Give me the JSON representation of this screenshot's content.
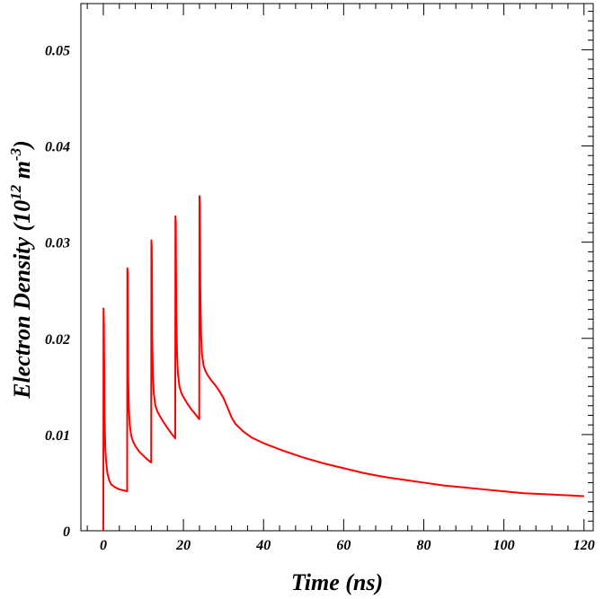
{
  "chart_data": {
    "type": "line",
    "xlabel": "Time (ns)",
    "ylabel": {
      "prefix": "Electron Density (10",
      "exp1": "12",
      "unit": " m",
      "exp2": "-3",
      "suffix": ")"
    },
    "xlim": [
      -5.6,
      122.3
    ],
    "ylim": [
      0,
      0.0548
    ],
    "xticks": [
      0,
      20,
      40,
      60,
      80,
      100,
      120
    ],
    "xtick_labels": [
      "0",
      "20",
      "40",
      "60",
      "80",
      "100",
      "120"
    ],
    "yticks": [
      0,
      0.01,
      0.02,
      0.03,
      0.04,
      0.05
    ],
    "ytick_labels": [
      "0",
      "0.01",
      "0.02",
      "0.03",
      "0.04",
      "0.05"
    ],
    "grid": false,
    "color": "#ff0000",
    "series": [
      {
        "x": [
          0,
          0.05,
          0.15,
          0.3,
          0.5,
          0.7,
          1.0,
          1.5,
          2.0,
          3.0,
          4.0,
          5.0,
          5.95,
          6.0,
          6.1,
          6.2,
          6.4,
          6.6,
          7.0,
          7.5,
          8.0,
          9.0,
          10.0,
          11.0,
          11.95,
          12.0,
          12.1,
          12.2,
          12.4,
          12.6,
          13.0,
          13.5,
          14.0,
          15.0,
          16.0,
          17.0,
          17.95,
          18.0,
          18.1,
          18.2,
          18.4,
          18.6,
          19.0,
          19.5,
          20.0,
          21.0,
          22.0,
          23.0,
          23.95,
          24.0,
          24.1,
          24.2,
          24.4,
          24.6,
          25.0,
          25.5,
          26.0,
          27.0,
          28.0,
          29.0,
          30.0,
          31.0,
          32.0,
          33.0,
          34.0,
          35.0,
          37.0,
          40.0,
          45.0,
          50.0,
          55.0,
          60.0,
          65.0,
          70.0,
          75.0,
          80.0,
          85.0,
          90.0,
          95.0,
          100.0,
          105.0,
          110.0,
          115.0,
          120.0
        ],
        "y": [
          0,
          0.0231,
          0.0215,
          0.012,
          0.0085,
          0.0072,
          0.006,
          0.0052,
          0.0048,
          0.0045,
          0.0043,
          0.0042,
          0.0041,
          0.0273,
          0.0268,
          0.016,
          0.0125,
          0.011,
          0.0098,
          0.0092,
          0.0088,
          0.0082,
          0.0078,
          0.0074,
          0.0071,
          0.0302,
          0.0295,
          0.02,
          0.016,
          0.0143,
          0.013,
          0.0124,
          0.012,
          0.0113,
          0.0107,
          0.0101,
          0.0096,
          0.0327,
          0.032,
          0.023,
          0.0185,
          0.0165,
          0.015,
          0.0143,
          0.0139,
          0.0132,
          0.0126,
          0.0121,
          0.0116,
          0.0348,
          0.034,
          0.0255,
          0.0205,
          0.0185,
          0.0172,
          0.0166,
          0.0162,
          0.0156,
          0.0151,
          0.0145,
          0.0138,
          0.0128,
          0.0118,
          0.0111,
          0.0107,
          0.0103,
          0.0097,
          0.0091,
          0.0083,
          0.0076,
          0.007,
          0.0065,
          0.006,
          0.0056,
          0.0053,
          0.005,
          0.0047,
          0.0045,
          0.0043,
          0.0041,
          0.0039,
          0.0038,
          0.0037,
          0.0036
        ]
      }
    ]
  }
}
